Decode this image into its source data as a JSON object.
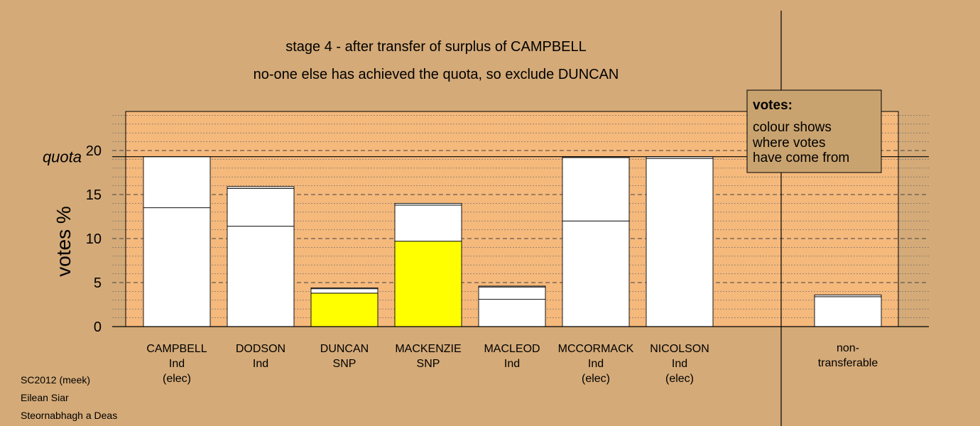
{
  "colors": {
    "background": "#D4AA78",
    "plot_area": "#F5B97C",
    "yellow_transfer": "#FFFF00",
    "bar_base": "#FFFFFF",
    "legend_box": "#C9A36F"
  },
  "legend": {
    "title": "votes:",
    "lines": [
      "colour shows",
      "where votes",
      "have come from"
    ]
  },
  "footer": {
    "lines": [
      "SC2012 (meek)",
      "Eilean Siar",
      "Steornabhagh a Deas"
    ]
  },
  "chart_data": {
    "type": "bar",
    "stacked": true,
    "title": "stage 4 - after transfer of surplus of CAMPBELL",
    "subtitle": "no-one else has achieved the quota, so exclude DUNCAN",
    "ylabel": "votes %",
    "ylim": [
      0,
      24
    ],
    "yticks": [
      0,
      5,
      10,
      15,
      20
    ],
    "grid": true,
    "quota_label": "quota",
    "quota": 19.3,
    "categories": [
      {
        "name": "CAMPBELL",
        "party": "Ind",
        "status": "(elec)"
      },
      {
        "name": "DODSON",
        "party": "Ind",
        "status": ""
      },
      {
        "name": "DUNCAN",
        "party": "SNP",
        "status": ""
      },
      {
        "name": "MACKENZIE",
        "party": "SNP",
        "status": ""
      },
      {
        "name": "MACLEOD",
        "party": "Ind",
        "status": ""
      },
      {
        "name": "MCCORMACK",
        "party": "Ind",
        "status": "(elec)"
      },
      {
        "name": "NICOLSON",
        "party": "Ind",
        "status": "(elec)"
      }
    ],
    "nontransferable": {
      "label_lines": [
        "non-",
        "transferable"
      ],
      "segments": [
        {
          "value": 3.4,
          "color": "#FFFFFF"
        },
        {
          "value": 0.2,
          "color": "#FFFFFF"
        }
      ]
    },
    "bars": [
      {
        "segments": [
          {
            "value": 13.5,
            "color": "#FFFFFF"
          },
          {
            "value": 5.8,
            "color": "#FFFFFF"
          }
        ]
      },
      {
        "segments": [
          {
            "value": 11.4,
            "color": "#FFFFFF"
          },
          {
            "value": 4.3,
            "color": "#FFFFFF"
          },
          {
            "value": 0.2,
            "color": "#FFFFFF"
          }
        ]
      },
      {
        "segments": [
          {
            "value": 3.8,
            "color": "#FFFF00"
          },
          {
            "value": 0.5,
            "color": "#FFFFFF"
          },
          {
            "value": 0.1,
            "color": "#FFFFFF"
          }
        ]
      },
      {
        "segments": [
          {
            "value": 9.7,
            "color": "#FFFF00"
          },
          {
            "value": 4.1,
            "color": "#FFFFFF"
          },
          {
            "value": 0.2,
            "color": "#FFFFFF"
          }
        ]
      },
      {
        "segments": [
          {
            "value": 3.1,
            "color": "#FFFFFF"
          },
          {
            "value": 1.4,
            "color": "#FFFFFF"
          },
          {
            "value": 0.1,
            "color": "#FFFFFF"
          }
        ]
      },
      {
        "segments": [
          {
            "value": 12.0,
            "color": "#FFFFFF"
          },
          {
            "value": 7.2,
            "color": "#FFFFFF"
          },
          {
            "value": 0.1,
            "color": "#FFFFFF"
          }
        ]
      },
      {
        "segments": [
          {
            "value": 19.1,
            "color": "#FFFFFF"
          },
          {
            "value": 0.2,
            "color": "#FFFFFF"
          }
        ]
      }
    ]
  }
}
